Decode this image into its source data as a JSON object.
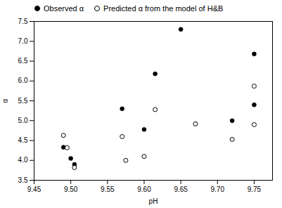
{
  "chart_data": {
    "type": "scatter",
    "xlabel": "pH",
    "ylabel": "α",
    "series": [
      {
        "name": "Observed α",
        "color": "black",
        "marker": "circle",
        "x": [
          9.49,
          9.5,
          9.505,
          9.57,
          9.6,
          9.615,
          9.65,
          9.72,
          9.75,
          9.75
        ],
        "y": [
          4.33,
          4.05,
          3.9,
          5.3,
          4.78,
          6.18,
          7.3,
          5.0,
          5.4,
          6.68
        ]
      },
      {
        "name": "Predicted α from the model of H&B",
        "color": "black",
        "marker": "open_circle",
        "x": [
          9.49,
          9.495,
          9.505,
          9.57,
          9.575,
          9.6,
          9.615,
          9.67,
          9.72,
          9.75,
          9.75
        ],
        "y": [
          4.63,
          4.32,
          3.82,
          4.6,
          4.0,
          4.1,
          5.28,
          4.92,
          4.53,
          5.87,
          4.9
        ]
      }
    ],
    "xlim": [
      9.45,
      9.775
    ],
    "ylim": [
      3.5,
      7.5
    ],
    "xticks": [
      9.45,
      {
        "value": 9.5,
        "label": "9.50"
      },
      9.55,
      {
        "value": 9.6,
        "label": "9.60"
      },
      9.65,
      {
        "value": 9.7,
        "label": "9.70"
      },
      9.75
    ],
    "yticks": [
      3.5,
      {
        "value": 4.0,
        "label": "4.0"
      },
      4.5,
      {
        "value": 5.0,
        "label": "5.0"
      },
      5.5,
      {
        "value": 6.0,
        "label": "6.0"
      },
      6.5,
      {
        "value": 7.0,
        "label": "7.0"
      },
      7.5
    ],
    "legend": "upper left"
  }
}
